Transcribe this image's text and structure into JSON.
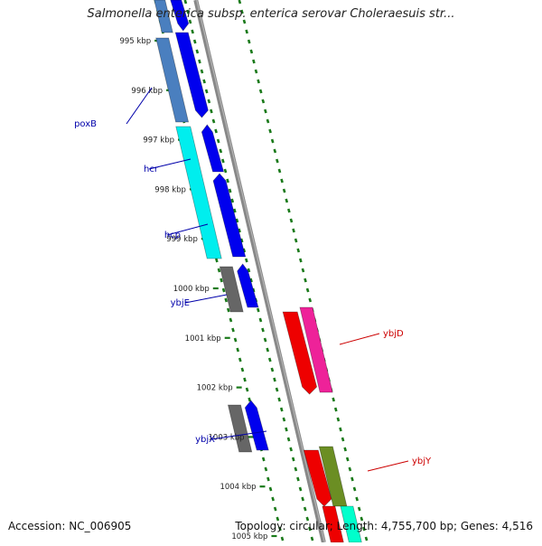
{
  "title": "Salmonella enterica subsp. enterica serovar Choleraesuis str...",
  "footer": {
    "accession": "Accession: NC_006905",
    "topology": "Topology: circular; Length: 4,755,700 bp; Genes: 4,516"
  },
  "colors": {
    "backbone": "#888888",
    "ticks": "#1a7a1a",
    "label_left": "#0000aa",
    "label_right": "#cc0000",
    "gene_blue": "#0000ee",
    "gene_cyan": "#00eeee",
    "gene_gray": "#666666",
    "gene_steel": "#4a7fbf",
    "gene_red": "#ee0000",
    "gene_magenta": "#ee2299",
    "gene_olive": "#6b8e23",
    "gene_aqua": "#00ffcc"
  },
  "kbp_labels": [
    "995 kbp",
    "996 kbp",
    "997 kbp",
    "998 kbp",
    "999 kbp",
    "1000 kbp",
    "1001 kbp",
    "1002 kbp",
    "1003 kbp",
    "1004 kbp",
    "1005 kbp"
  ],
  "gene_labels": {
    "left": [
      "poxB",
      "hcr",
      "hcp",
      "ybjE",
      "ybjX"
    ],
    "right": [
      "ybjD",
      "ybjY"
    ]
  }
}
